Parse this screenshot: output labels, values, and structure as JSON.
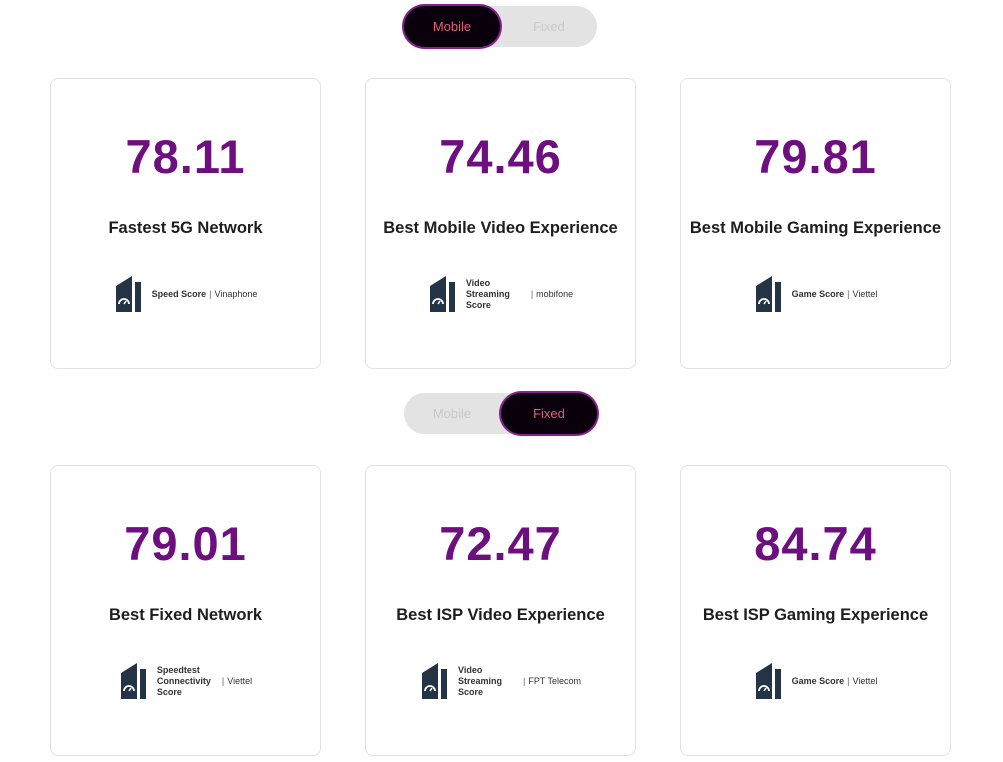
{
  "toggles": [
    {
      "options": [
        "Mobile",
        "Fixed"
      ],
      "active": "Mobile"
    },
    {
      "options": [
        "Mobile",
        "Fixed"
      ],
      "active": "Fixed"
    }
  ],
  "cards": [
    {
      "score": "78.11",
      "title": "Fastest 5G Network",
      "metric": "Speed Score",
      "provider": "Vinaphone"
    },
    {
      "score": "74.46",
      "title": "Best Mobile Video Experience",
      "metric": "Video Streaming Score",
      "provider": "mobifone"
    },
    {
      "score": "79.81",
      "title": "Best Mobile Gaming Experience",
      "metric": "Game Score",
      "provider": "Viettel"
    },
    {
      "score": "79.01",
      "title": "Best Fixed Network",
      "metric": "Speedtest Connectivity Score",
      "provider": "Viettel"
    },
    {
      "score": "72.47",
      "title": "Best ISP Video Experience",
      "metric": "Video Streaming Score",
      "provider": "FPT Telecom"
    },
    {
      "score": "84.74",
      "title": "Best ISP Gaming Experience",
      "metric": "Game Score",
      "provider": "Viettel"
    }
  ],
  "separator": "|",
  "colors": {
    "accent": "#6e0f80",
    "active_bg": "#0a000c",
    "active_text": "#e0607a",
    "icon": "#243447"
  }
}
